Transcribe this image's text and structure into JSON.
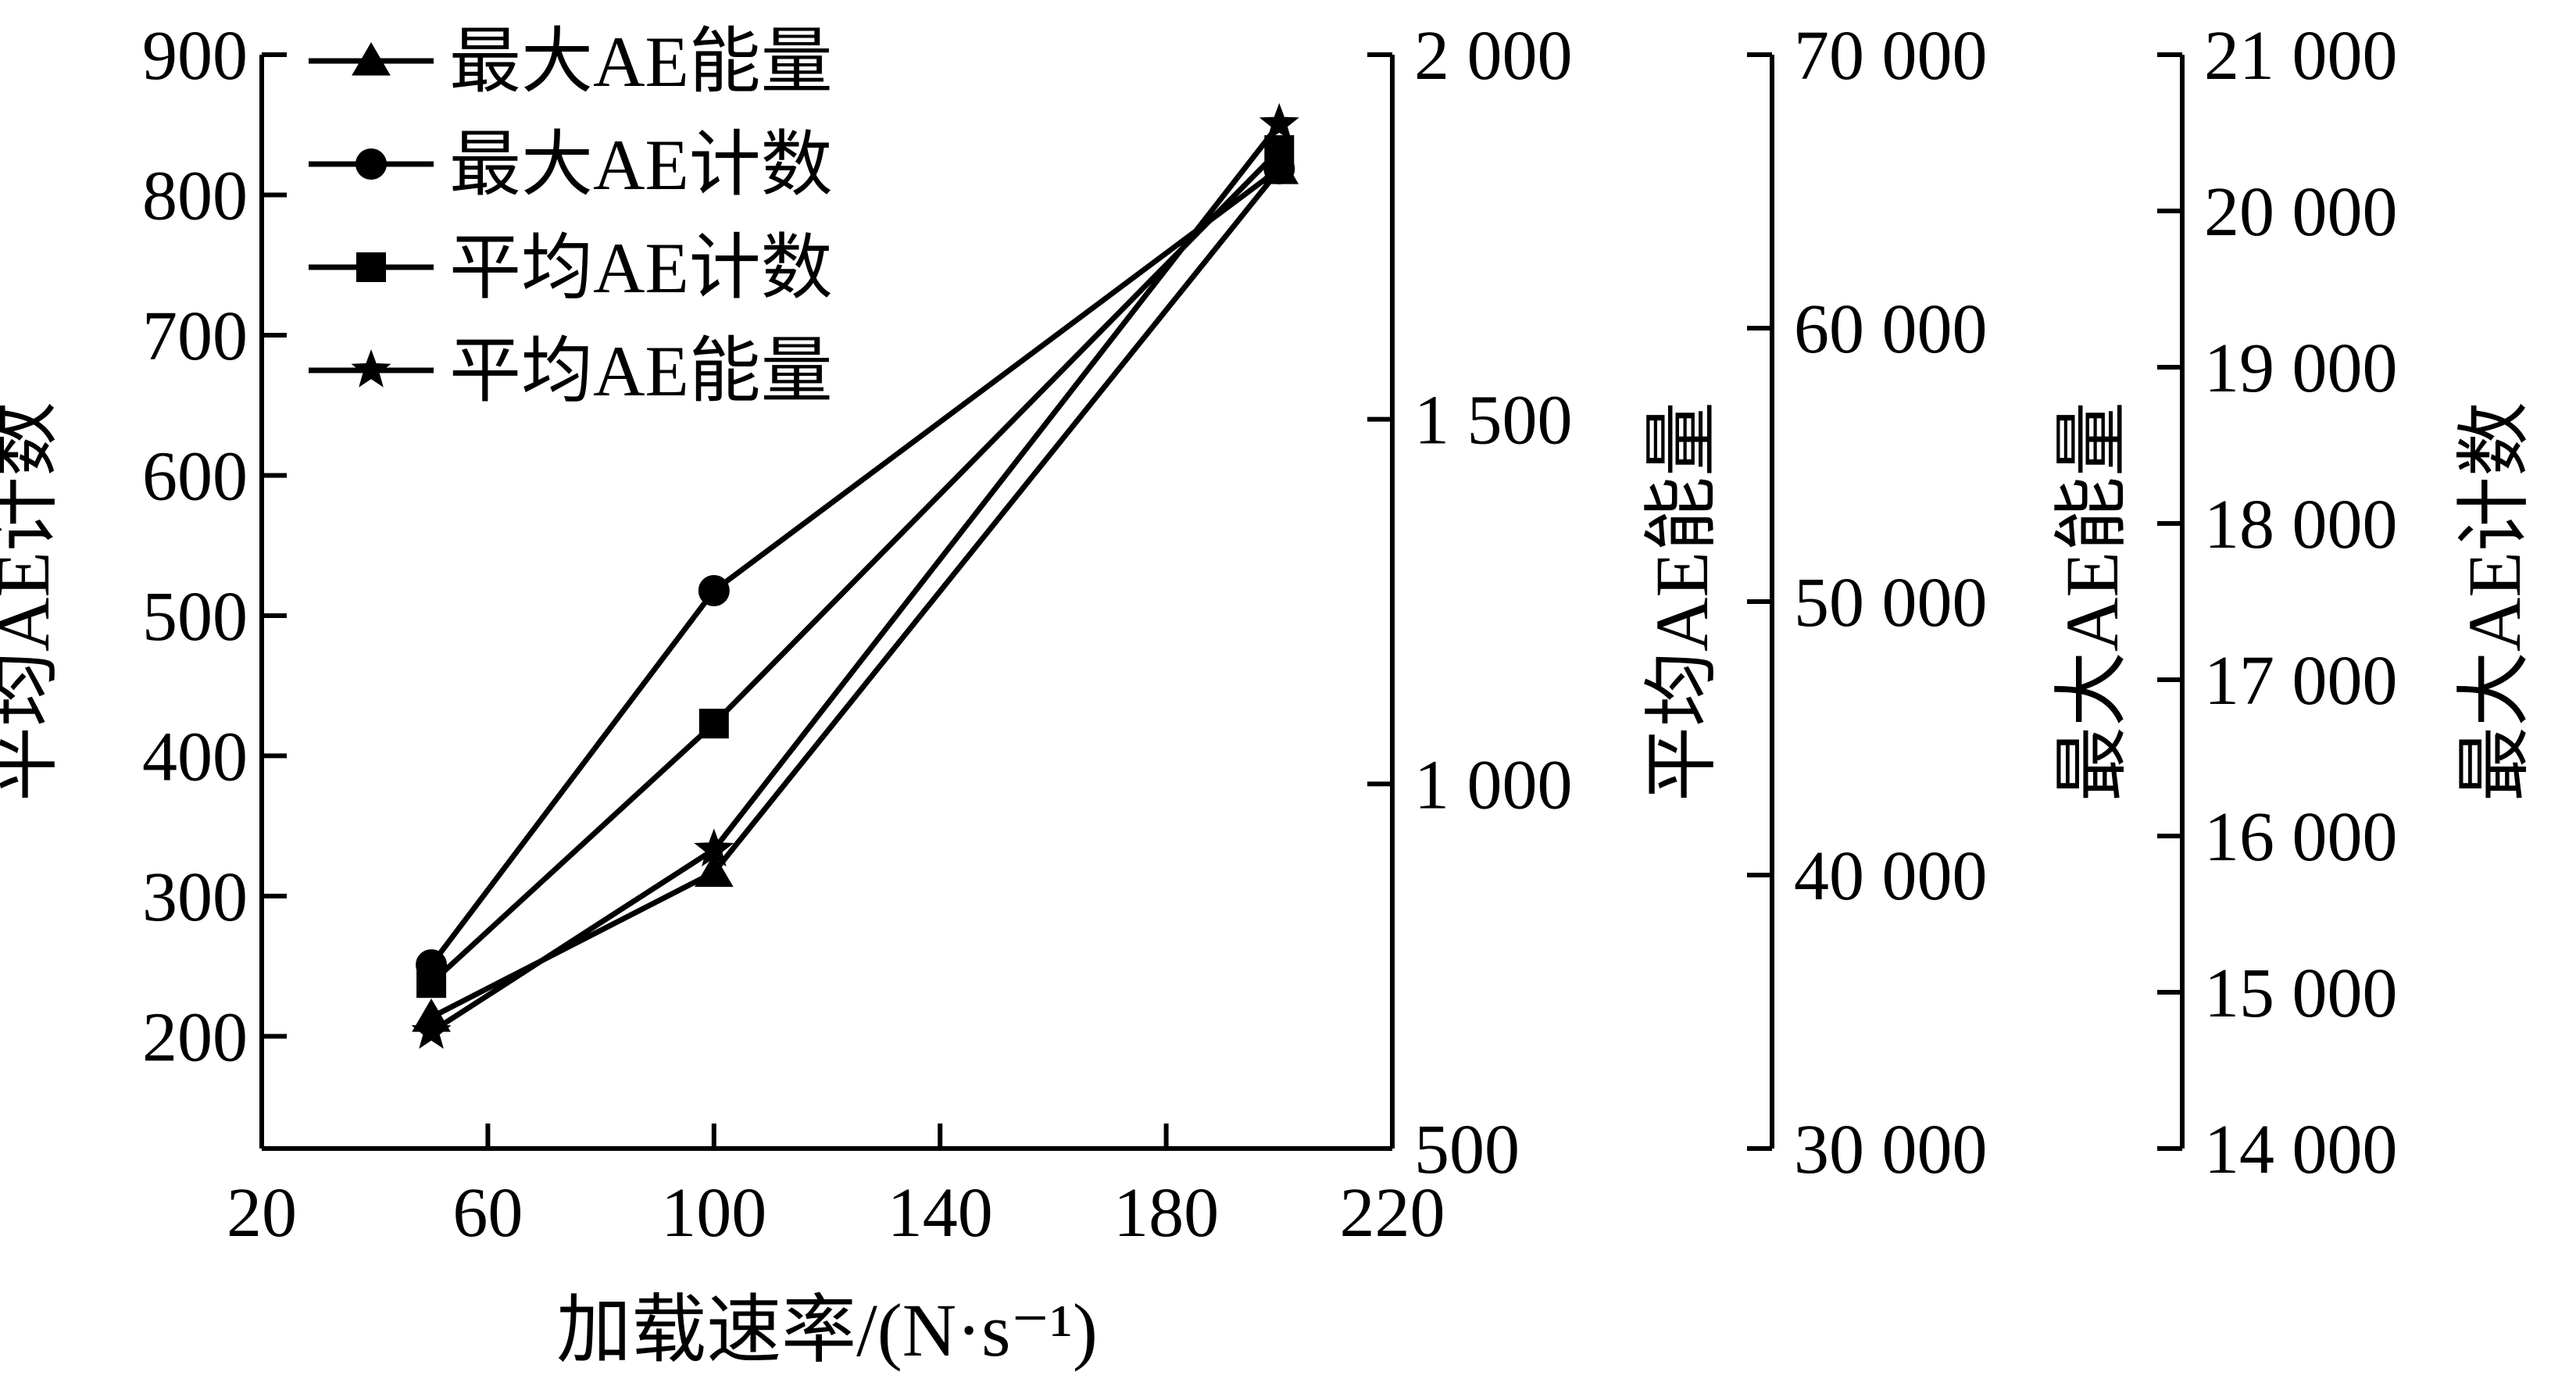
{
  "chart_data": {
    "type": "line",
    "title": "",
    "xlabel": "加载速率/(N·s⁻¹)",
    "x": [
      50,
      100,
      200
    ],
    "xlim": [
      20,
      220
    ],
    "xticks": [
      20,
      60,
      100,
      140,
      180,
      220
    ],
    "xtick_labels": [
      "20",
      "60",
      "100",
      "140",
      "180",
      "220"
    ],
    "grid": false,
    "legend_position": "top-left",
    "axes": [
      {
        "id": "avg_count",
        "label": "平均AE计数",
        "position": "left",
        "ylim": [
          120,
          900
        ],
        "ticks": [
          200,
          300,
          400,
          500,
          600,
          700,
          800,
          900
        ],
        "tick_labels": [
          "200",
          "300",
          "400",
          "500",
          "600",
          "700",
          "800",
          "900"
        ]
      },
      {
        "id": "avg_energy",
        "label": "平均AE能量",
        "position": "right-1",
        "ylim": [
          500,
          2000
        ],
        "ticks": [
          500,
          1000,
          1500,
          2000
        ],
        "tick_labels": [
          "500",
          "1 000",
          "1 500",
          "2 000"
        ]
      },
      {
        "id": "max_energy",
        "label": "最大AE能量",
        "position": "right-2",
        "ylim": [
          30000,
          70000
        ],
        "ticks": [
          30000,
          40000,
          50000,
          60000,
          70000
        ],
        "tick_labels": [
          "30 000",
          "40 000",
          "50 000",
          "60 000",
          "70 000"
        ]
      },
      {
        "id": "max_count",
        "label": "最大AE计数",
        "position": "right-3",
        "ylim": [
          14000,
          21000
        ],
        "ticks": [
          14000,
          15000,
          16000,
          17000,
          18000,
          19000,
          20000,
          21000
        ],
        "tick_labels": [
          "14 000",
          "15 000",
          "16 000",
          "17 000",
          "18 000",
          "19 000",
          "20 000",
          "21 000"
        ]
      }
    ],
    "series": [
      {
        "name": "最大AE能量",
        "axis": "max_energy",
        "marker": "triangle",
        "values": [
          34800,
          40100,
          65800
        ]
      },
      {
        "name": "最大AE计数",
        "axis": "max_count",
        "marker": "circle",
        "values": [
          15175,
          17570,
          20270
        ]
      },
      {
        "name": "平均AE计数",
        "axis": "avg_count",
        "marker": "square",
        "values": [
          238,
          423,
          832
        ]
      },
      {
        "name": "平均AE能量",
        "axis": "avg_energy",
        "marker": "star",
        "values": [
          660,
          910,
          1905
        ]
      }
    ]
  }
}
